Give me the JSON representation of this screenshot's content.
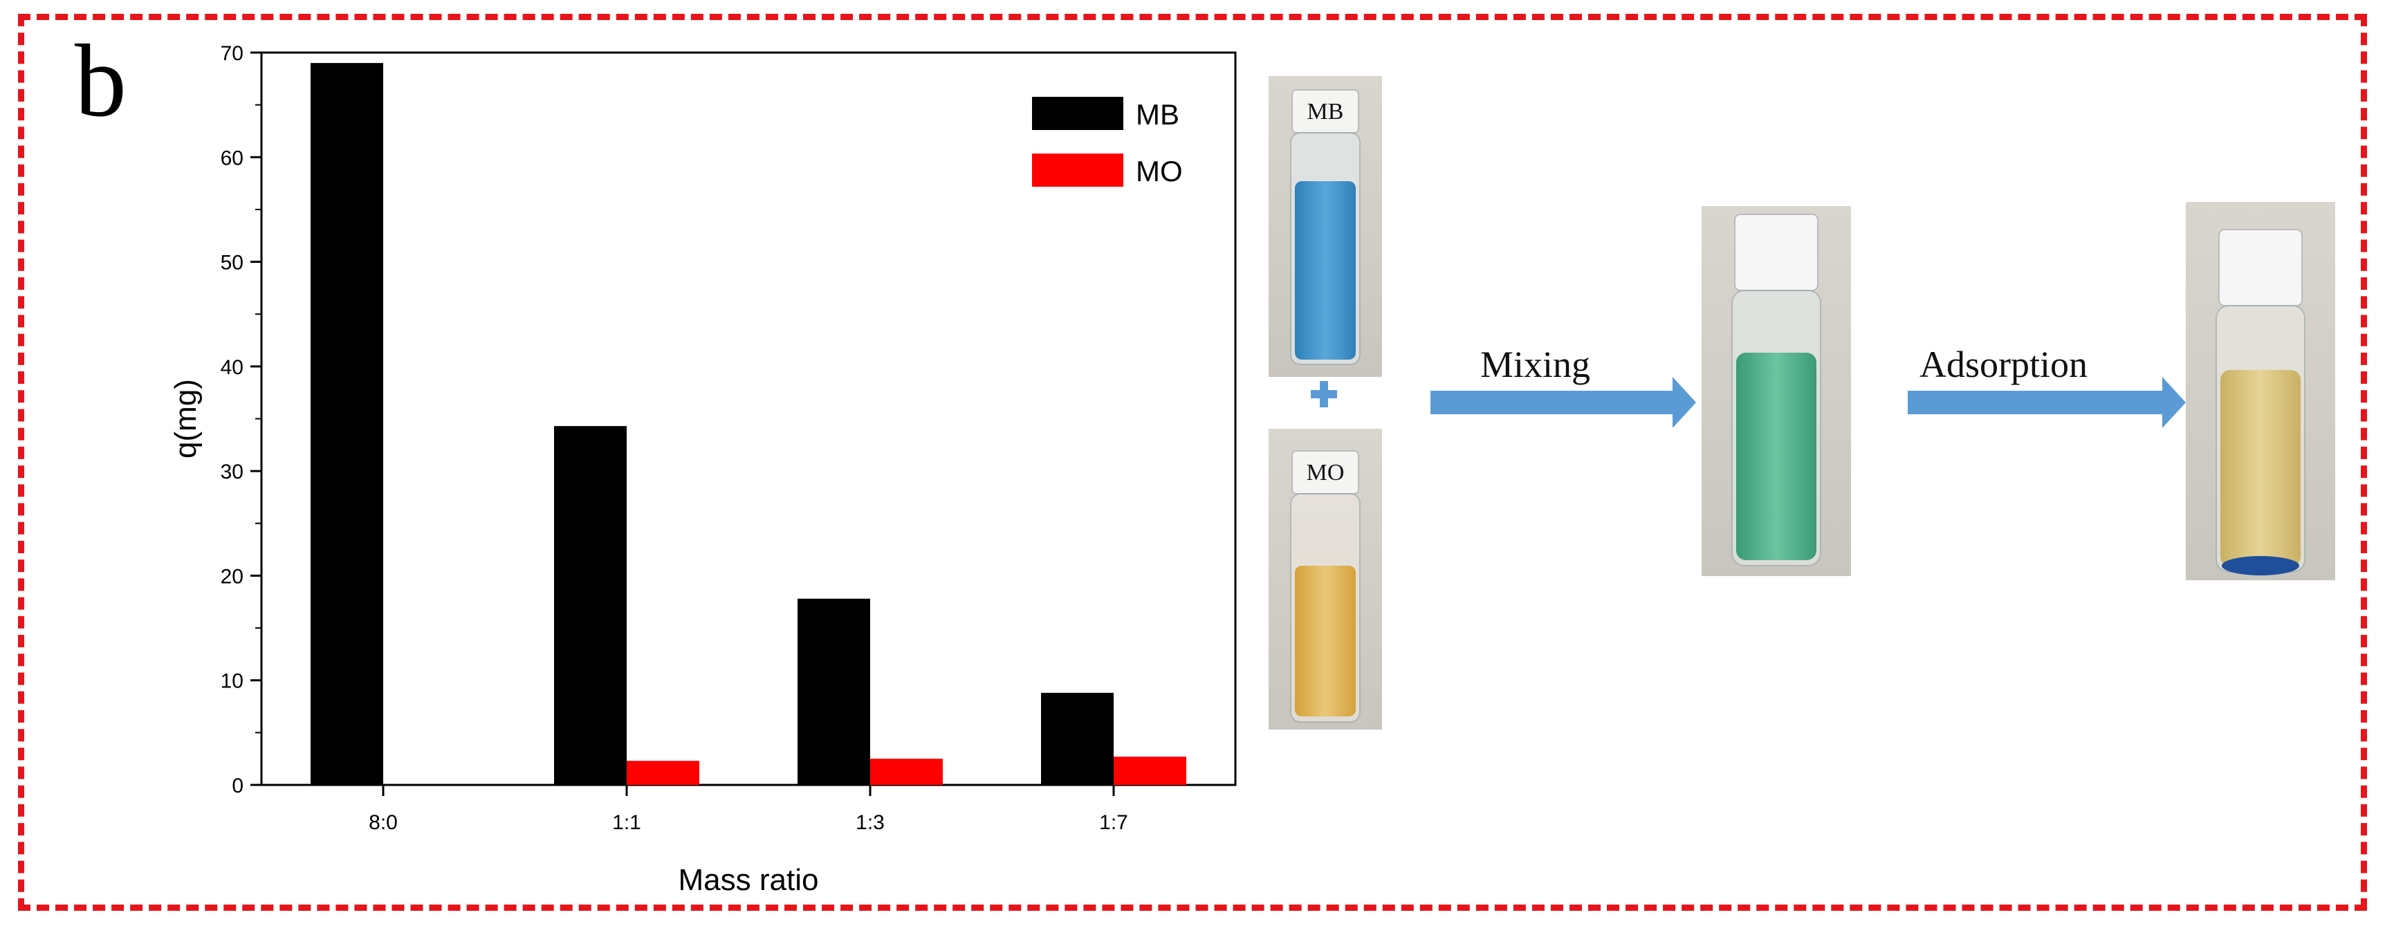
{
  "panel_label": "b",
  "colors": {
    "frame": "#e8141b",
    "MB": "#000000",
    "MO": "#ff0000",
    "arrow": "#5b9bd5",
    "plus": "#5b9bd5"
  },
  "chart_data": {
    "type": "bar",
    "categories": [
      "8:0",
      "1:1",
      "1:3",
      "1:7"
    ],
    "series": [
      {
        "name": "MB",
        "values": [
          69,
          34.3,
          17.8,
          8.8
        ]
      },
      {
        "name": "MO",
        "values": [
          0,
          2.3,
          2.5,
          2.7
        ]
      }
    ],
    "xlabel": "Mass ratio",
    "ylabel": "q(mg)",
    "ylim": [
      0,
      70
    ],
    "yticks": [
      0,
      10,
      20,
      30,
      40,
      50,
      60,
      70
    ],
    "grid": false,
    "legend_position": "top-right"
  },
  "illustration": {
    "vial_mb_label": "MB",
    "vial_mo_label": "MO",
    "plus_symbol": "+",
    "step1_label": "Mixing",
    "step2_label": "Adsorption"
  }
}
